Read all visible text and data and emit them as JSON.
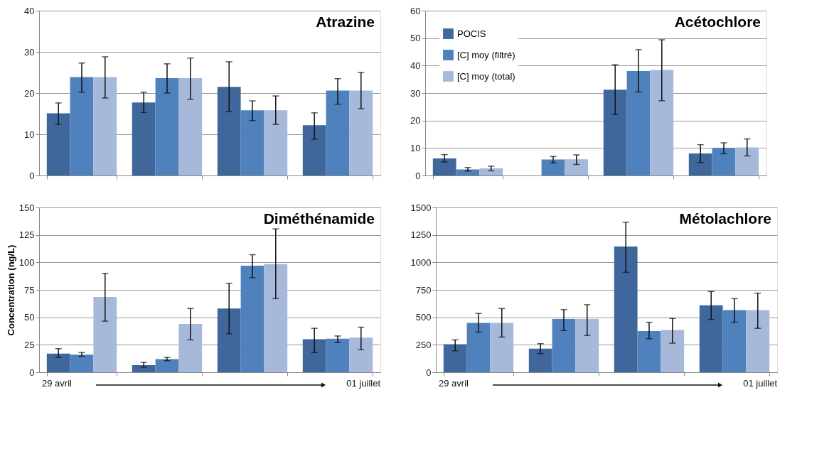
{
  "chart_data": [
    {
      "type": "bar",
      "title": "Atrazine",
      "categories": [
        null,
        null,
        null,
        null
      ],
      "ylim": [
        0,
        40
      ],
      "yticks": [
        0,
        10,
        20,
        30,
        40
      ],
      "grid": "y",
      "tick_labels": "y",
      "legend": false,
      "series": [
        {
          "color": "#3f679c",
          "values": [
            15.1,
            17.7,
            21.5,
            12.2
          ],
          "errors": [
            [
              12.4,
              17.6
            ],
            [
              15.3,
              20.2
            ],
            [
              15.5,
              27.6
            ],
            [
              8.8,
              15.2
            ]
          ]
        },
        {
          "color": "#4f81bd",
          "values": [
            23.9,
            23.6,
            15.8,
            20.6
          ],
          "errors": [
            [
              20.2,
              27.3
            ],
            [
              20.0,
              27.1
            ],
            [
              13.3,
              18.1
            ],
            [
              17.3,
              23.5
            ]
          ]
        },
        {
          "color": "#a7b9da",
          "values": [
            23.9,
            23.6,
            15.8,
            20.6
          ],
          "errors": [
            [
              18.8,
              28.8
            ],
            [
              18.5,
              28.5
            ],
            [
              12.4,
              19.3
            ],
            [
              16.2,
              25.0
            ]
          ]
        }
      ]
    },
    {
      "type": "bar",
      "title": "Acétochlore",
      "categories": [
        null,
        null,
        null,
        null
      ],
      "ylim": [
        0,
        60
      ],
      "yticks": [
        0,
        10,
        20,
        30,
        40,
        50,
        60
      ],
      "grid": "y",
      "tick_labels": "y",
      "legend": "top left",
      "series": [
        {
          "name": "POCIS",
          "color": "#3f679c",
          "values": [
            6.2,
            null,
            31.2,
            8.0
          ],
          "errors": [
            [
              4.9,
              7.6
            ],
            null,
            [
              22.2,
              40.3
            ],
            [
              4.7,
              11.2
            ]
          ]
        },
        {
          "name": "[C] moy (filtré)",
          "color": "#4f81bd",
          "values": [
            2.2,
            5.8,
            38.0,
            10.0
          ],
          "errors": [
            [
              1.6,
              2.9
            ],
            [
              4.6,
              6.9
            ],
            [
              30.4,
              45.8
            ],
            [
              7.9,
              11.9
            ]
          ]
        },
        {
          "name": "[C] moy (total)",
          "color": "#a7b9da",
          "values": [
            2.6,
            5.9,
            38.4,
            10.2
          ],
          "errors": [
            [
              1.7,
              3.4
            ],
            [
              4.0,
              7.5
            ],
            [
              27.2,
              49.4
            ],
            [
              7.1,
              13.3
            ]
          ]
        }
      ]
    },
    {
      "type": "bar",
      "title": "Diméthénamide",
      "ylabel": "Concentration (ng/L)",
      "categories": [
        null,
        null,
        null,
        null
      ],
      "ylim": [
        0,
        150
      ],
      "yticks": [
        0,
        25,
        50,
        75,
        100,
        125,
        150
      ],
      "grid": "y",
      "tick_labels": "y",
      "legend": false,
      "annotations": [
        "29 avril",
        "01 juillet"
      ],
      "series": [
        {
          "color": "#3f679c",
          "values": [
            17,
            6.5,
            58,
            30
          ],
          "errors": [
            [
              13.5,
              21.5
            ],
            [
              4.5,
              9
            ],
            [
              35,
              81
            ],
            [
              18,
              40
            ]
          ]
        },
        {
          "color": "#4f81bd",
          "values": [
            16,
            12,
            97,
            30.5
          ],
          "errors": [
            [
              14.5,
              18
            ],
            [
              10.5,
              13.5
            ],
            [
              86,
              107
            ],
            [
              27,
              33
            ]
          ]
        },
        {
          "color": "#a7b9da",
          "values": [
            68.5,
            44,
            98.5,
            31.5
          ],
          "errors": [
            [
              46.5,
              90
            ],
            [
              29.5,
              58
            ],
            [
              67,
              130.5
            ],
            [
              20.5,
              41
            ]
          ]
        }
      ]
    },
    {
      "type": "bar",
      "title": "Métolachlore",
      "categories": [
        null,
        null,
        null,
        null
      ],
      "ylim": [
        0,
        1500
      ],
      "yticks": [
        0,
        250,
        500,
        750,
        1000,
        1250,
        1500
      ],
      "grid": "y",
      "tick_labels": "y",
      "legend": false,
      "annotations": [
        "29 avril",
        "01 juillet"
      ],
      "series": [
        {
          "color": "#3f679c",
          "values": [
            255,
            215,
            1145,
            610
          ],
          "errors": [
            [
              195,
              295
            ],
            [
              170,
              260
            ],
            [
              910,
              1365
            ],
            [
              480,
              735
            ]
          ]
        },
        {
          "color": "#4f81bd",
          "values": [
            450,
            485,
            375,
            565
          ],
          "errors": [
            [
              365,
              535
            ],
            [
              380,
              570
            ],
            [
              305,
              455
            ],
            [
              455,
              670
            ]
          ]
        },
        {
          "color": "#a7b9da",
          "values": [
            450,
            485,
            385,
            565
          ],
          "errors": [
            [
              320,
              580
            ],
            [
              335,
              615
            ],
            [
              265,
              490
            ],
            [
              400,
              720
            ]
          ]
        }
      ]
    }
  ]
}
